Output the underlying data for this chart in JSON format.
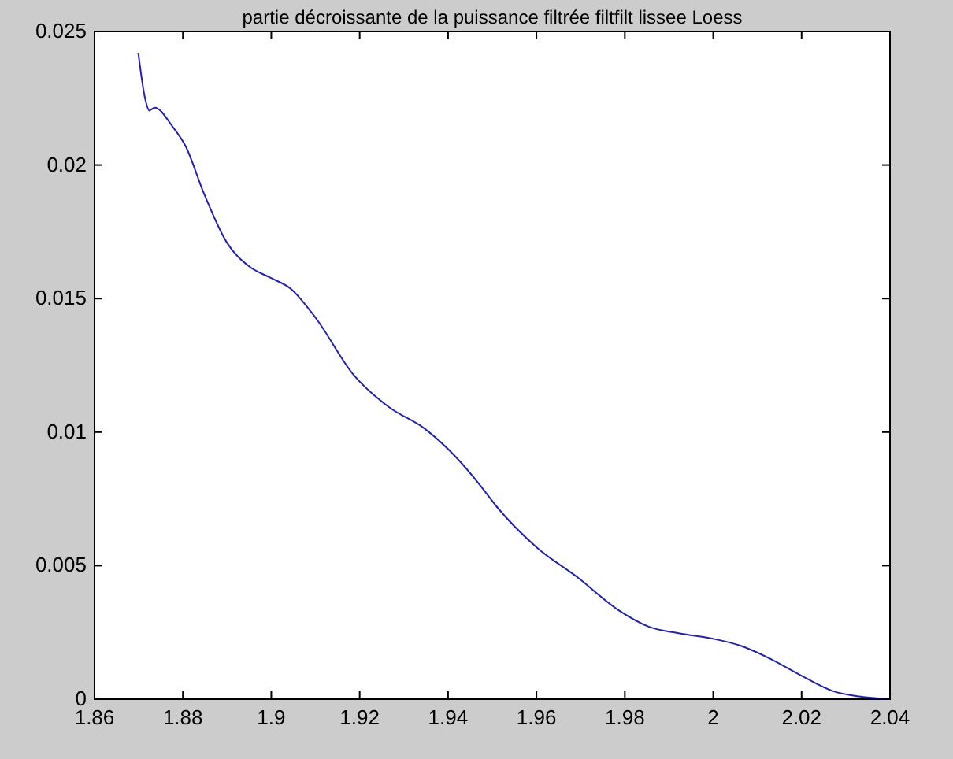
{
  "chart_data": {
    "type": "line",
    "title": "partie décroissante de la puissance filtrée filtfilt lissee Loess",
    "series": [
      {
        "color": "#2020c0",
        "x": [
          1.8699,
          1.8715,
          1.8724,
          1.8736,
          1.8777,
          1.8806,
          1.8847,
          1.8899,
          1.8951,
          1.8998,
          1.9044,
          1.9102,
          1.9184,
          1.9265,
          1.9347,
          1.9417,
          1.9474,
          1.9509,
          1.96,
          1.9693,
          1.9786,
          1.9855,
          1.9925,
          2.0,
          2.0064,
          2.0133,
          2.0202,
          2.0272,
          2.033,
          2.04
        ],
        "values": [
          0.0242,
          0.02245,
          0.02204,
          0.02215,
          0.02143,
          0.02071,
          0.01896,
          0.01711,
          0.01619,
          0.01578,
          0.01537,
          0.01424,
          0.01219,
          0.01095,
          0.01013,
          0.00908,
          0.00798,
          0.00723,
          0.00569,
          0.00456,
          0.00333,
          0.00271,
          0.00246,
          0.00226,
          0.00199,
          0.00148,
          0.00086,
          0.0003,
          0.0001,
          0
        ]
      }
    ],
    "xlim": [
      1.86,
      2.04
    ],
    "xticks": [
      1.86,
      1.88,
      1.9,
      1.92,
      1.94,
      1.96,
      1.98,
      2,
      2.02,
      2.04
    ],
    "ylim": [
      0,
      0.025
    ],
    "yticks": [
      0,
      0.005,
      0.01,
      0.015,
      0.02,
      0.025
    ],
    "grid": false,
    "marker": "none",
    "line_style": "solid"
  }
}
